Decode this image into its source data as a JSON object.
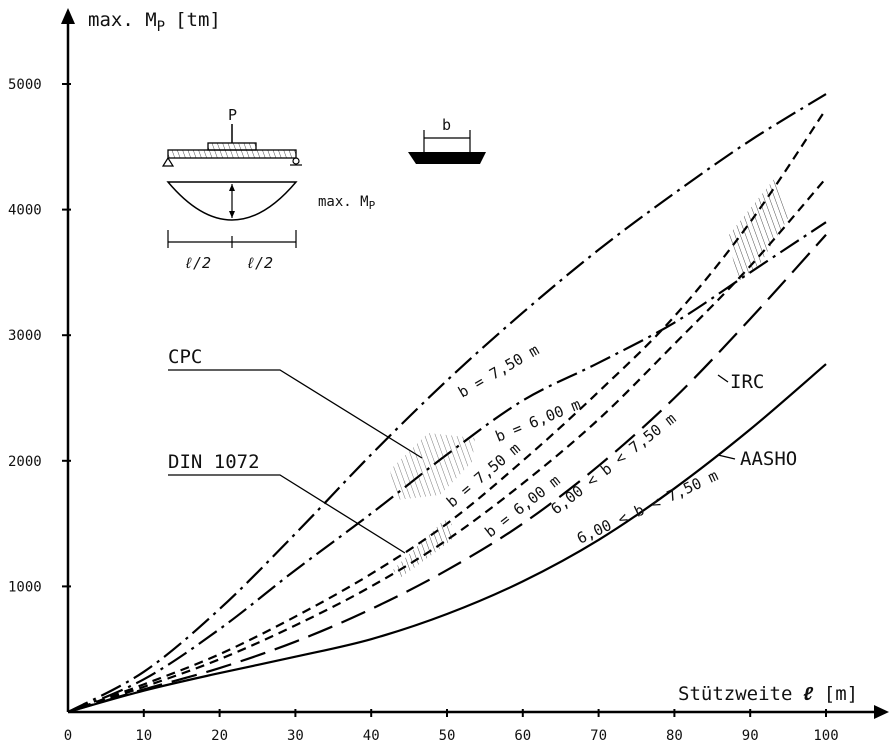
{
  "chart_data": {
    "type": "line",
    "ylabel": "max. M",
    "ylabel_sub": "P",
    "yunit": "[tm]",
    "xlabel": "Stützweite",
    "xlabel_symbol": "ℓ",
    "xunit": "[m]",
    "xlim": [
      0,
      100
    ],
    "ylim": [
      0,
      5000
    ],
    "xticks": [
      "0",
      "10",
      "20",
      "30",
      "40",
      "50",
      "60",
      "70",
      "80",
      "90",
      "100"
    ],
    "yticks": [
      "1000",
      "2000",
      "3000",
      "4000",
      "5000"
    ],
    "grid": false,
    "series": [
      {
        "label": "b = 7,50 m",
        "group": "CPC",
        "dash": "dashdot",
        "x": [
          0,
          10,
          20,
          30,
          40,
          50,
          60,
          70,
          80,
          90,
          100
        ],
        "y": [
          0,
          320,
          820,
          1420,
          2050,
          2640,
          3180,
          3680,
          4130,
          4550,
          4920
        ]
      },
      {
        "label": "b = 6,00 m",
        "group": "CPC",
        "dash": "dashdot",
        "x": [
          0,
          10,
          20,
          30,
          40,
          50,
          60,
          70,
          80,
          90,
          100
        ],
        "y": [
          0,
          260,
          660,
          1130,
          1580,
          2050,
          2480,
          2780,
          3100,
          3500,
          3900
        ]
      },
      {
        "label": "b = 7,50 m",
        "group": "DIN 1072",
        "dash": "dashed",
        "x": [
          0,
          10,
          20,
          30,
          40,
          50,
          60,
          70,
          80,
          90,
          100
        ],
        "y": [
          0,
          220,
          460,
          760,
          1100,
          1500,
          2000,
          2550,
          3150,
          3900,
          4800
        ]
      },
      {
        "label": "b = 6,00 m",
        "group": "DIN 1072",
        "dash": "dashed",
        "x": [
          0,
          10,
          20,
          30,
          40,
          50,
          60,
          70,
          80,
          90,
          100
        ],
        "y": [
          0,
          200,
          420,
          690,
          1000,
          1370,
          1820,
          2330,
          2930,
          3550,
          4250
        ]
      },
      {
        "label": "6,00 < b < 7,50 m",
        "group": "IRC",
        "dash": "longdash",
        "x": [
          0,
          10,
          20,
          30,
          40,
          50,
          60,
          70,
          80,
          90,
          100
        ],
        "y": [
          0,
          180,
          350,
          560,
          820,
          1130,
          1500,
          1960,
          2500,
          3130,
          3800
        ]
      },
      {
        "label": "6,00 < b < 7,50 m",
        "group": "AASHO",
        "dash": "solid",
        "x": [
          0,
          10,
          20,
          30,
          40,
          50,
          60,
          70,
          80,
          90,
          100
        ],
        "y": [
          0,
          170,
          310,
          440,
          580,
          780,
          1040,
          1370,
          1780,
          2250,
          2770
        ]
      }
    ],
    "annotations": [
      "CPC",
      "DIN 1072",
      "IRC",
      "AASHO"
    ],
    "inset": {
      "load_label": "P",
      "moment_label": "max. M",
      "moment_sub": "P",
      "span_left": "ℓ/2",
      "span_right": "ℓ/2",
      "width_label": "b"
    }
  }
}
